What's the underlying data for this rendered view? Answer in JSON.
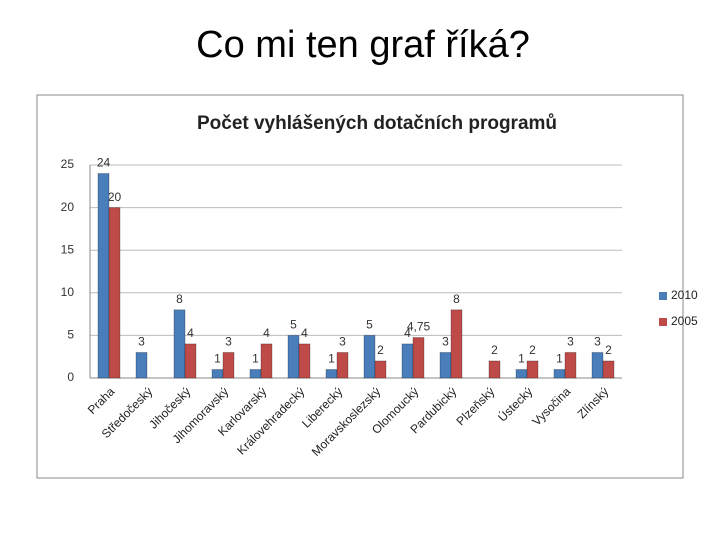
{
  "title": "Co mi ten graf říká?",
  "chart_data": {
    "type": "bar",
    "title": "Počet vyhlášených dotačních programů",
    "categories": [
      "Praha",
      "Středočeský",
      "Jihočeský",
      "Jihomoravský",
      "Karlovarský",
      "Královehradecký",
      "Liberecký",
      "Moravskoslezský",
      "Olomoucký",
      "Pardubický",
      "Plzeňský",
      "Ústecký",
      "Vysočina",
      "Zlínský"
    ],
    "series": [
      {
        "name": "2010",
        "color": "#4a7ebb",
        "values": [
          24,
          3,
          8,
          1,
          1,
          5,
          1,
          5,
          4,
          3,
          null,
          1,
          1,
          3
        ]
      },
      {
        "name": "2005",
        "color": "#be4b48",
        "values": [
          20,
          null,
          4,
          3,
          4,
          4,
          3,
          2,
          4.75,
          8,
          2,
          2,
          3,
          2
        ],
        "value_labels": [
          "20",
          null,
          "4",
          "3",
          "4",
          "4",
          "3",
          "2",
          "4,75",
          "8",
          "2",
          "2",
          "3",
          "2"
        ]
      }
    ],
    "ylim": [
      0,
      25
    ],
    "yticks": [
      0,
      5,
      10,
      15,
      20,
      25
    ],
    "grid": true,
    "legend": "right"
  }
}
